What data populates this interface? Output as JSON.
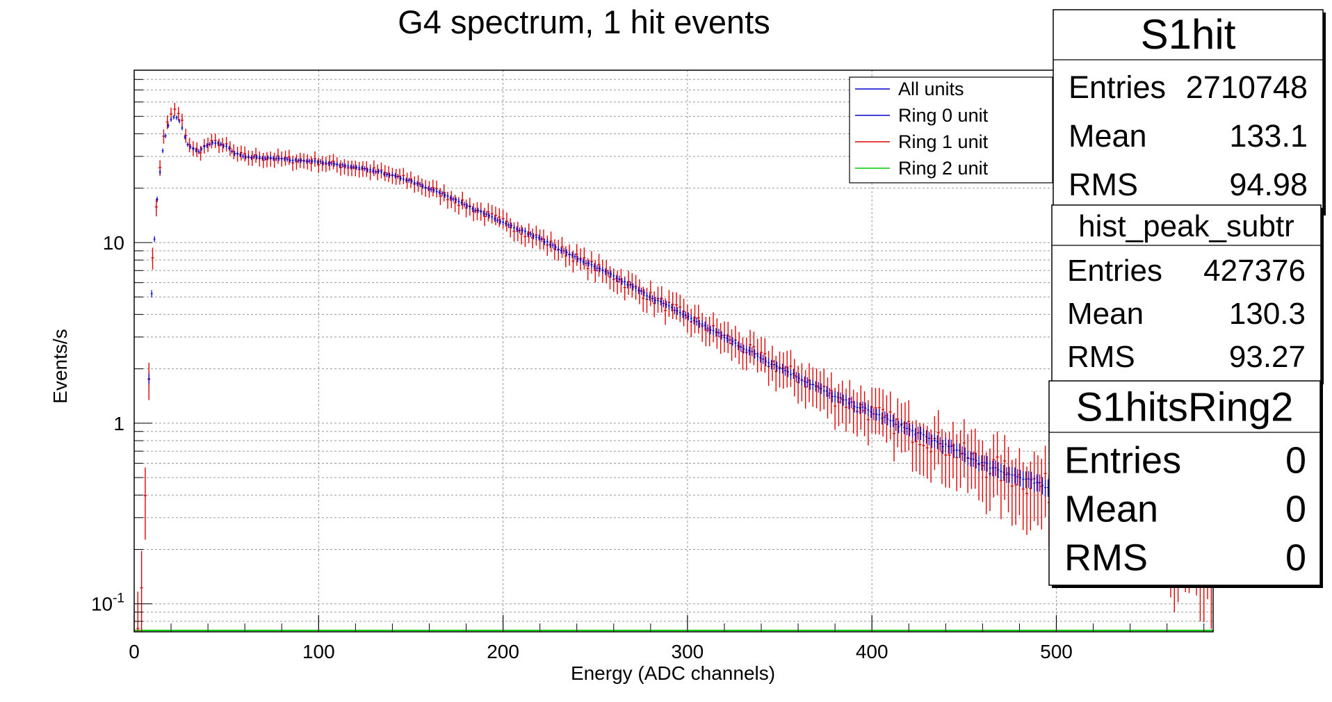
{
  "chart_data": {
    "type": "line",
    "title": "G4 spectrum, 1 hit events",
    "xlabel": "Energy (ADC channels)",
    "ylabel": "Events/s",
    "xlim": [
      0,
      585
    ],
    "ylim": [
      0.07,
      90
    ],
    "yscale": "log",
    "grid": true,
    "x_ticks": [
      0,
      100,
      200,
      300,
      400,
      500
    ],
    "y_ticks": [
      {
        "value": 0.1,
        "base": "10",
        "exp": "-1"
      },
      {
        "value": 1,
        "base": "1",
        "exp": ""
      },
      {
        "value": 10,
        "base": "10",
        "exp": ""
      }
    ],
    "legend": {
      "placement": "top-right",
      "entries": [
        {
          "label": "All units",
          "color": "#0000cc"
        },
        {
          "label": "Ring 0 unit",
          "color": "#0000cc"
        },
        {
          "label": "Ring 1 unit",
          "color": "#e00000"
        },
        {
          "label": "Ring 2 unit",
          "color": "#00cc00"
        }
      ]
    },
    "series_shape": {
      "x": [
        4,
        7,
        10,
        13,
        16,
        19,
        22,
        25,
        28,
        31,
        35,
        40,
        45,
        50,
        55,
        60,
        70,
        80,
        90,
        100,
        110,
        120,
        130,
        140,
        150,
        160,
        170,
        180,
        190,
        200,
        220,
        240,
        260,
        280,
        300,
        320,
        340,
        360,
        380,
        400,
        420,
        440,
        460,
        480,
        500,
        520,
        540,
        560,
        580
      ],
      "y": [
        0.1,
        0.9,
        8,
        22,
        38,
        50,
        54,
        50,
        40,
        33,
        32,
        35,
        36,
        34,
        31,
        30,
        29.5,
        29,
        28.5,
        28,
        27,
        26,
        25,
        23.5,
        22,
        20,
        18,
        16,
        14.5,
        13,
        10.5,
        8.2,
        6.5,
        5,
        3.9,
        3,
        2.3,
        1.8,
        1.4,
        1.15,
        0.92,
        0.75,
        0.6,
        0.5,
        0.42,
        0.35,
        0.3,
        0.26,
        0.22
      ]
    },
    "series": [
      {
        "name": "Ring 0 unit",
        "color": "#0000cc"
      },
      {
        "name": "Ring 1 unit",
        "color": "#e00000"
      },
      {
        "name": "Ring 2 unit",
        "color": "#00cc00"
      }
    ]
  },
  "stats_boxes": [
    {
      "name": "S1hit",
      "rows": [
        {
          "label": "Entries",
          "value": "2710748"
        },
        {
          "label": "Mean",
          "value": "133.1"
        },
        {
          "label": "RMS",
          "value": "94.98"
        }
      ]
    },
    {
      "name": "hist_peak_subtr",
      "rows": [
        {
          "label": "Entries",
          "value": "427376"
        },
        {
          "label": "Mean",
          "value": "130.3"
        },
        {
          "label": "RMS",
          "value": "93.27"
        }
      ]
    },
    {
      "name": "S1hitsRing2",
      "rows": [
        {
          "label": "Entries",
          "value": "0"
        },
        {
          "label": "Mean",
          "value": "0"
        },
        {
          "label": "RMS",
          "value": "0"
        }
      ]
    }
  ]
}
